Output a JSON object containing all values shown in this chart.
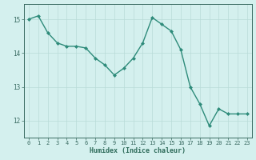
{
  "x": [
    0,
    1,
    2,
    3,
    4,
    5,
    6,
    7,
    8,
    9,
    10,
    11,
    12,
    13,
    14,
    15,
    16,
    17,
    18,
    19,
    20,
    21,
    22,
    23
  ],
  "y": [
    15.0,
    15.1,
    14.6,
    14.3,
    14.2,
    14.2,
    14.15,
    13.85,
    13.65,
    13.35,
    13.55,
    13.85,
    14.3,
    15.05,
    14.85,
    14.65,
    14.1,
    13.0,
    12.5,
    11.85,
    12.35,
    12.2,
    12.2,
    12.2
  ],
  "xlabel": "Humidex (Indice chaleur)",
  "yticks": [
    12,
    13,
    14,
    15
  ],
  "xticks": [
    0,
    1,
    2,
    3,
    4,
    5,
    6,
    7,
    8,
    9,
    10,
    11,
    12,
    13,
    14,
    15,
    16,
    17,
    18,
    19,
    20,
    21,
    22,
    23
  ],
  "ylim": [
    11.5,
    15.45
  ],
  "xlim": [
    -0.5,
    23.5
  ],
  "line_color": "#2e8b7a",
  "marker_color": "#2e8b7a",
  "bg_color": "#d4f0ee",
  "grid_color": "#b8dbd8",
  "axis_color": "#3a6b62",
  "xlabel_color": "#2e6b5a"
}
